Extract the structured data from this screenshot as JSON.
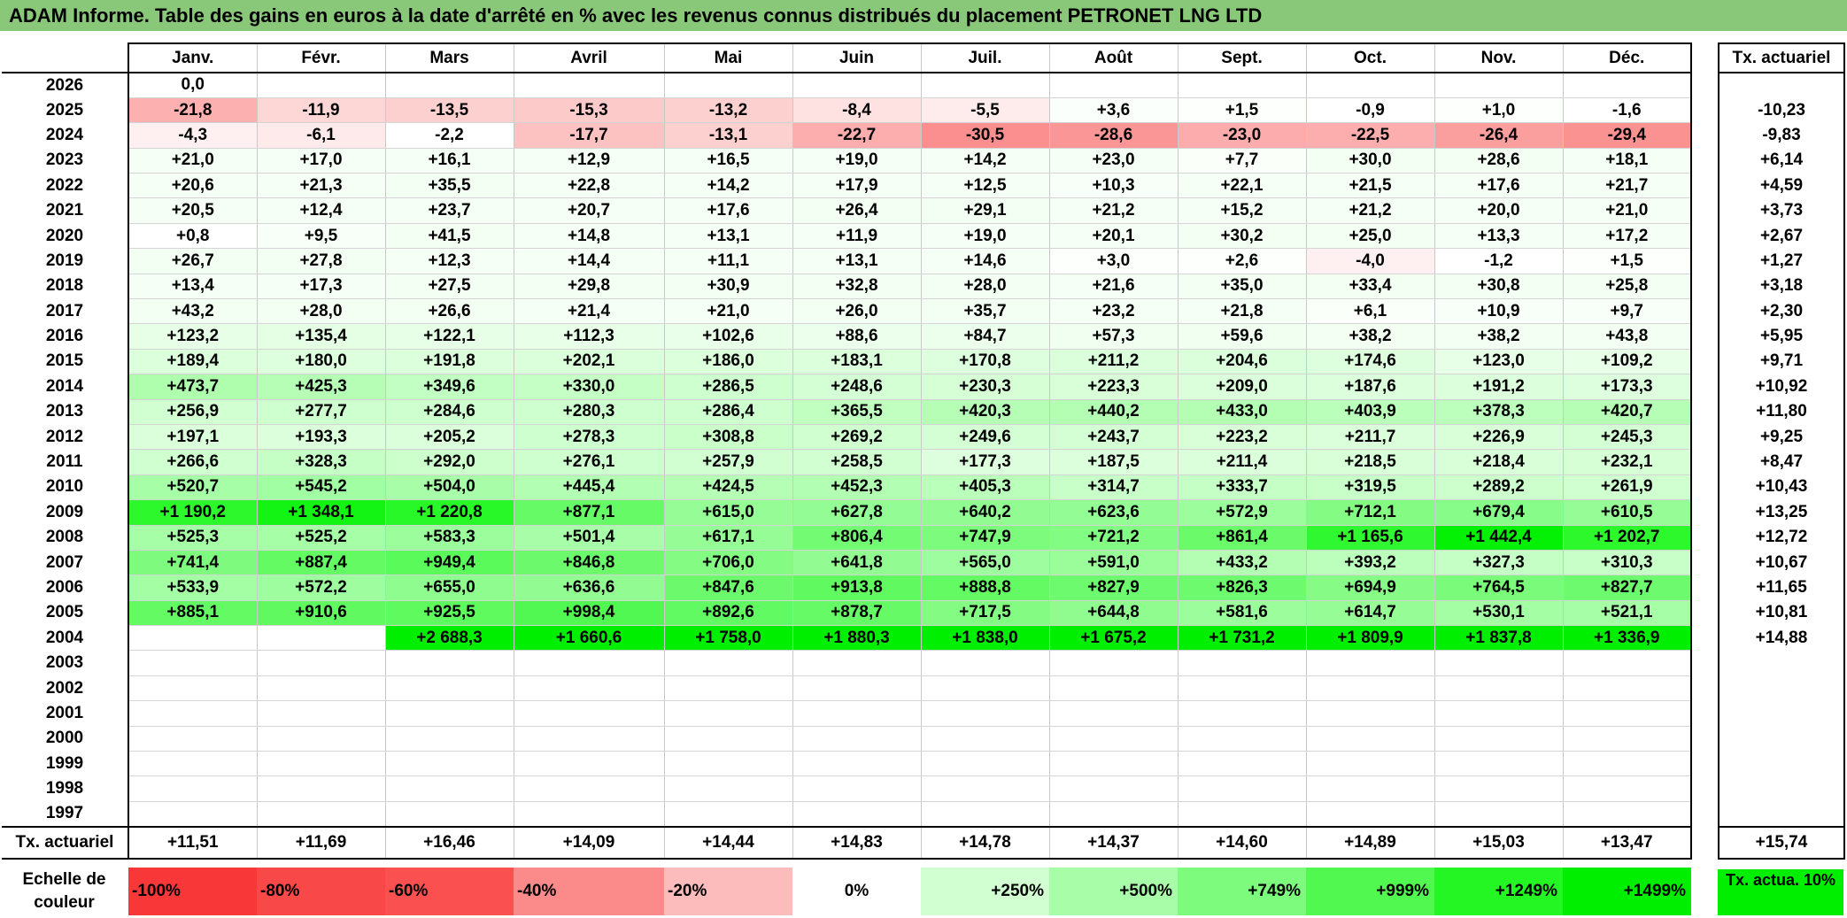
{
  "title": "ADAM Informe. Table des gains en euros à la date d'arrêté en % avec les revenus connus distribués du placement PETRONET LNG LTD",
  "months": [
    "Janv.",
    "Févr.",
    "Mars",
    "Avril",
    "Mai",
    "Juin",
    "Juil.",
    "Août",
    "Sept.",
    "Oct.",
    "Nov.",
    "Déc."
  ],
  "side_header": "Tx. actuariel",
  "rows": [
    {
      "year": "2026",
      "values": [
        "0,0",
        "",
        "",
        "",
        "",
        "",
        "",
        "",
        "",
        "",
        "",
        ""
      ],
      "colors": [
        "#ffffff",
        "#ffffff",
        "#ffffff",
        "#ffffff",
        "#ffffff",
        "#ffffff",
        "#ffffff",
        "#ffffff",
        "#ffffff",
        "#ffffff",
        "#ffffff",
        "#ffffff"
      ],
      "rate": ""
    },
    {
      "year": "2025",
      "values": [
        "-21,8",
        "-11,9",
        "-13,5",
        "-15,3",
        "-13,2",
        "-8,4",
        "-5,5",
        "+3,6",
        "+1,5",
        "-0,9",
        "+1,0",
        "-1,6"
      ],
      "colors": [
        "#fcb0b0",
        "#fdd6d6",
        "#fdd0d0",
        "#fdcaca",
        "#fdd0d0",
        "#fee2e2",
        "#feecec",
        "#fbfffb",
        "#fdfffd",
        "#ffffff",
        "#fdfffd",
        "#ffffff"
      ],
      "rate": "-10,23"
    },
    {
      "year": "2024",
      "values": [
        "-4,3",
        "-6,1",
        "-2,2",
        "-17,7",
        "-13,1",
        "-22,7",
        "-30,5",
        "-28,6",
        "-23,0",
        "-22,5",
        "-26,4",
        "-29,4"
      ],
      "colors": [
        "#fef0f0",
        "#feeaea",
        "#ffffff",
        "#fcc2c2",
        "#fdd0d0",
        "#fcaeae",
        "#fb8e8e",
        "#fb9696",
        "#fcacac",
        "#fcaeae",
        "#fb9e9e",
        "#fb9292"
      ],
      "rate": "-9,83"
    },
    {
      "year": "2023",
      "values": [
        "+21,0",
        "+17,0",
        "+16,1",
        "+12,9",
        "+16,5",
        "+19,0",
        "+14,2",
        "+23,0",
        "+7,7",
        "+30,0",
        "+28,6",
        "+18,1"
      ],
      "colors": [
        "#f6fff6",
        "#f6fff6",
        "#f6fff6",
        "#f6fff6",
        "#f6fff6",
        "#f6fff6",
        "#f6fff6",
        "#f6fff6",
        "#fafffa",
        "#f4fff4",
        "#f4fff4",
        "#f6fff6"
      ],
      "rate": "+6,14"
    },
    {
      "year": "2022",
      "values": [
        "+20,6",
        "+21,3",
        "+35,5",
        "+22,8",
        "+14,2",
        "+17,9",
        "+12,5",
        "+10,3",
        "+22,1",
        "+21,5",
        "+17,6",
        "+21,7"
      ],
      "colors": [
        "#f6fff6",
        "#f6fff6",
        "#f4fff4",
        "#f6fff6",
        "#f6fff6",
        "#f6fff6",
        "#f6fff6",
        "#f8fff8",
        "#f6fff6",
        "#f6fff6",
        "#f6fff6",
        "#f6fff6"
      ],
      "rate": "+4,59"
    },
    {
      "year": "2021",
      "values": [
        "+20,5",
        "+12,4",
        "+23,7",
        "+20,7",
        "+17,6",
        "+26,4",
        "+29,1",
        "+21,2",
        "+15,2",
        "+21,2",
        "+20,0",
        "+21,0"
      ],
      "colors": [
        "#f6fff6",
        "#f6fff6",
        "#f6fff6",
        "#f6fff6",
        "#f6fff6",
        "#f4fff4",
        "#f4fff4",
        "#f6fff6",
        "#f6fff6",
        "#f6fff6",
        "#f6fff6",
        "#f6fff6"
      ],
      "rate": "+3,73"
    },
    {
      "year": "2020",
      "values": [
        "+0,8",
        "+9,5",
        "+41,5",
        "+14,8",
        "+13,1",
        "+11,9",
        "+19,0",
        "+20,1",
        "+30,2",
        "+25,0",
        "+13,3",
        "+17,2"
      ],
      "colors": [
        "#ffffff",
        "#f8fff8",
        "#f2fff2",
        "#f6fff6",
        "#f6fff6",
        "#f6fff6",
        "#f6fff6",
        "#f6fff6",
        "#f4fff4",
        "#f4fff4",
        "#f6fff6",
        "#f6fff6"
      ],
      "rate": "+2,67"
    },
    {
      "year": "2019",
      "values": [
        "+26,7",
        "+27,8",
        "+12,3",
        "+14,4",
        "+11,1",
        "+13,1",
        "+14,6",
        "+3,0",
        "+2,6",
        "-4,0",
        "-1,2",
        "+1,5"
      ],
      "colors": [
        "#f4fff4",
        "#f4fff4",
        "#f6fff6",
        "#f6fff6",
        "#f6fff6",
        "#f6fff6",
        "#f6fff6",
        "#fcfffc",
        "#fdfffd",
        "#fef0f0",
        "#ffffff",
        "#fdfffd"
      ],
      "rate": "+1,27"
    },
    {
      "year": "2018",
      "values": [
        "+13,4",
        "+17,3",
        "+27,5",
        "+29,8",
        "+30,9",
        "+32,8",
        "+28,0",
        "+21,6",
        "+35,0",
        "+33,4",
        "+30,8",
        "+25,8"
      ],
      "colors": [
        "#f6fff6",
        "#f6fff6",
        "#f4fff4",
        "#f4fff4",
        "#f4fff4",
        "#f4fff4",
        "#f4fff4",
        "#f6fff6",
        "#f4fff4",
        "#f4fff4",
        "#f4fff4",
        "#f4fff4"
      ],
      "rate": "+3,18"
    },
    {
      "year": "2017",
      "values": [
        "+43,2",
        "+28,0",
        "+26,6",
        "+21,4",
        "+21,0",
        "+26,0",
        "+35,7",
        "+23,2",
        "+21,8",
        "+6,1",
        "+10,9",
        "+9,7"
      ],
      "colors": [
        "#f2fff2",
        "#f4fff4",
        "#f4fff4",
        "#f6fff6",
        "#f6fff6",
        "#f4fff4",
        "#f4fff4",
        "#f6fff6",
        "#f6fff6",
        "#fafffa",
        "#f8fff8",
        "#f8fff8"
      ],
      "rate": "+2,30"
    },
    {
      "year": "2016",
      "values": [
        "+123,2",
        "+135,4",
        "+122,1",
        "+112,3",
        "+102,6",
        "+88,6",
        "+84,7",
        "+57,3",
        "+59,6",
        "+38,2",
        "+38,2",
        "+43,8"
      ],
      "colors": [
        "#e6ffe6",
        "#e4ffe4",
        "#e6ffe6",
        "#e8ffe8",
        "#eaffea",
        "#ecffec",
        "#ecffec",
        "#f0fff0",
        "#f0fff0",
        "#f2fff2",
        "#f2fff2",
        "#f2fff2"
      ],
      "rate": "+5,95"
    },
    {
      "year": "2015",
      "values": [
        "+189,4",
        "+180,0",
        "+191,8",
        "+202,1",
        "+186,0",
        "+183,1",
        "+170,8",
        "+211,2",
        "+204,6",
        "+174,6",
        "+123,0",
        "+109,2"
      ],
      "colors": [
        "#dcffdc",
        "#deffde",
        "#dcffdc",
        "#daffda",
        "#dcffdc",
        "#dcffdc",
        "#deffde",
        "#daffda",
        "#daffda",
        "#deffde",
        "#e6ffe6",
        "#e8ffe8"
      ],
      "rate": "+9,71"
    },
    {
      "year": "2014",
      "values": [
        "+473,7",
        "+425,3",
        "+349,6",
        "+330,0",
        "+286,5",
        "+248,6",
        "+230,3",
        "+223,3",
        "+209,0",
        "+187,6",
        "+191,2",
        "+173,3"
      ],
      "colors": [
        "#aefeae",
        "#b6feb6",
        "#c2ffc2",
        "#c6ffc6",
        "#ceffce",
        "#d4ffd4",
        "#d6ffd6",
        "#d8ffd8",
        "#daffda",
        "#dcffdc",
        "#dcffdc",
        "#deffde"
      ],
      "rate": "+10,92"
    },
    {
      "year": "2013",
      "values": [
        "+256,9",
        "+277,7",
        "+284,6",
        "+280,3",
        "+286,4",
        "+365,5",
        "+420,3",
        "+440,2",
        "+433,0",
        "+403,9",
        "+378,3",
        "+420,7"
      ],
      "colors": [
        "#d2ffd2",
        "#ceffce",
        "#ceffce",
        "#ceffce",
        "#ceffce",
        "#c0ffc0",
        "#b6feb6",
        "#b4feb4",
        "#b4feb4",
        "#baffba",
        "#bcffbc",
        "#b6feb6"
      ],
      "rate": "+11,80"
    },
    {
      "year": "2012",
      "values": [
        "+197,1",
        "+193,3",
        "+205,2",
        "+278,3",
        "+308,8",
        "+269,2",
        "+249,6",
        "+243,7",
        "+223,2",
        "+211,7",
        "+226,9",
        "+245,3"
      ],
      "colors": [
        "#daffda",
        "#dcffdc",
        "#daffda",
        "#ceffce",
        "#caffca",
        "#d0ffd0",
        "#d4ffd4",
        "#d4ffd4",
        "#d8ffd8",
        "#daffda",
        "#d8ffd8",
        "#d4ffd4"
      ],
      "rate": "+9,25"
    },
    {
      "year": "2011",
      "values": [
        "+266,6",
        "+328,3",
        "+292,0",
        "+276,1",
        "+257,9",
        "+258,5",
        "+177,3",
        "+187,5",
        "+211,4",
        "+218,5",
        "+218,4",
        "+232,1"
      ],
      "colors": [
        "#d0ffd0",
        "#c6ffc6",
        "#ccffcc",
        "#ceffce",
        "#d2ffd2",
        "#d2ffd2",
        "#deffde",
        "#dcffdc",
        "#daffda",
        "#d8ffd8",
        "#d8ffd8",
        "#d6ffd6"
      ],
      "rate": "+8,47"
    },
    {
      "year": "2010",
      "values": [
        "+520,7",
        "+545,2",
        "+504,0",
        "+445,4",
        "+424,5",
        "+452,3",
        "+405,3",
        "+314,7",
        "+333,7",
        "+319,5",
        "+289,2",
        "+261,9"
      ],
      "colors": [
        "#a6fea6",
        "#a2fea2",
        "#a8fea8",
        "#b2feb2",
        "#b6feb6",
        "#b2feb2",
        "#baffba",
        "#c8ffc8",
        "#c6ffc6",
        "#c8ffc8",
        "#ccffcc",
        "#d0ffd0"
      ],
      "rate": "+10,43"
    },
    {
      "year": "2009",
      "values": [
        "+1 190,2",
        "+1 348,1",
        "+1 220,8",
        "+877,1",
        "+615,0",
        "+627,8",
        "+640,2",
        "+623,6",
        "+572,9",
        "+712,1",
        "+679,4",
        "+610,5"
      ],
      "colors": [
        "#2cf82c",
        "#14f414",
        "#28f828",
        "#66fa66",
        "#96fc96",
        "#94fc94",
        "#92fc92",
        "#94fc94",
        "#9cfd9c",
        "#84fc84",
        "#88fc88",
        "#96fc96"
      ],
      "rate": "+13,25"
    },
    {
      "year": "2008",
      "values": [
        "+525,3",
        "+525,2",
        "+583,3",
        "+501,4",
        "+617,1",
        "+806,4",
        "+747,9",
        "+721,2",
        "+861,4",
        "+1 165,6",
        "+1 442,4",
        "+1 202,7"
      ],
      "colors": [
        "#a6fea6",
        "#a6fea6",
        "#9cfd9c",
        "#a8fea8",
        "#96fc96",
        "#74fb74",
        "#7cfb7c",
        "#82fc82",
        "#6afa6a",
        "#30f830",
        "#04f004",
        "#2cf82c"
      ],
      "rate": "+12,72"
    },
    {
      "year": "2007",
      "values": [
        "+741,4",
        "+887,4",
        "+949,4",
        "+846,8",
        "+706,0",
        "+641,8",
        "+565,0",
        "+591,0",
        "+433,2",
        "+393,2",
        "+327,3",
        "+310,3"
      ],
      "colors": [
        "#7efb7e",
        "#64fa64",
        "#5afa5a",
        "#6cfa6c",
        "#84fc84",
        "#92fc92",
        "#9efd9e",
        "#9afd9a",
        "#b4feb4",
        "#bcffbc",
        "#c6ffc6",
        "#c8ffc8"
      ],
      "rate": "+10,67"
    },
    {
      "year": "2006",
      "values": [
        "+533,9",
        "+572,2",
        "+655,0",
        "+636,6",
        "+847,6",
        "+913,8",
        "+888,8",
        "+827,9",
        "+826,3",
        "+694,9",
        "+764,5",
        "+827,7"
      ],
      "colors": [
        "#a4fea4",
        "#9efd9e",
        "#8efc8e",
        "#92fc92",
        "#6cfa6c",
        "#60fa60",
        "#64fa64",
        "#6efa6e",
        "#6efa6e",
        "#86fc86",
        "#7afb7a",
        "#6efa6e"
      ],
      "rate": "+11,65"
    },
    {
      "year": "2005",
      "values": [
        "+885,1",
        "+910,6",
        "+925,5",
        "+998,4",
        "+892,6",
        "+878,7",
        "+717,5",
        "+644,8",
        "+581,6",
        "+614,7",
        "+530,1",
        "+521,1"
      ],
      "colors": [
        "#64fa64",
        "#60fa60",
        "#5efa5e",
        "#52f852",
        "#62fa62",
        "#66fa66",
        "#84fc84",
        "#90fc90",
        "#9cfd9c",
        "#96fc96",
        "#a4fea4",
        "#a6fea6"
      ],
      "rate": "+10,81"
    },
    {
      "year": "2004",
      "values": [
        "",
        "",
        "+2 688,3",
        "+1 660,6",
        "+1 758,0",
        "+1 880,3",
        "+1 838,0",
        "+1 675,2",
        "+1 731,2",
        "+1 809,9",
        "+1 837,8",
        "+1 336,9"
      ],
      "colors": [
        "#ffffff",
        "#ffffff",
        "#00ee00",
        "#00ee00",
        "#00ee00",
        "#00ee00",
        "#00ee00",
        "#00ee00",
        "#00ee00",
        "#00ee00",
        "#00ee00",
        "#00ee00"
      ],
      "rate": "+14,88"
    },
    {
      "year": "2003",
      "values": [
        "",
        "",
        "",
        "",
        "",
        "",
        "",
        "",
        "",
        "",
        "",
        ""
      ],
      "colors": [
        "#ffffff",
        "#ffffff",
        "#ffffff",
        "#ffffff",
        "#ffffff",
        "#ffffff",
        "#ffffff",
        "#ffffff",
        "#ffffff",
        "#ffffff",
        "#ffffff",
        "#ffffff"
      ],
      "rate": ""
    },
    {
      "year": "2002",
      "values": [
        "",
        "",
        "",
        "",
        "",
        "",
        "",
        "",
        "",
        "",
        "",
        ""
      ],
      "colors": [
        "#ffffff",
        "#ffffff",
        "#ffffff",
        "#ffffff",
        "#ffffff",
        "#ffffff",
        "#ffffff",
        "#ffffff",
        "#ffffff",
        "#ffffff",
        "#ffffff",
        "#ffffff"
      ],
      "rate": ""
    },
    {
      "year": "2001",
      "values": [
        "",
        "",
        "",
        "",
        "",
        "",
        "",
        "",
        "",
        "",
        "",
        ""
      ],
      "colors": [
        "#ffffff",
        "#ffffff",
        "#ffffff",
        "#ffffff",
        "#ffffff",
        "#ffffff",
        "#ffffff",
        "#ffffff",
        "#ffffff",
        "#ffffff",
        "#ffffff",
        "#ffffff"
      ],
      "rate": ""
    },
    {
      "year": "2000",
      "values": [
        "",
        "",
        "",
        "",
        "",
        "",
        "",
        "",
        "",
        "",
        "",
        ""
      ],
      "colors": [
        "#ffffff",
        "#ffffff",
        "#ffffff",
        "#ffffff",
        "#ffffff",
        "#ffffff",
        "#ffffff",
        "#ffffff",
        "#ffffff",
        "#ffffff",
        "#ffffff",
        "#ffffff"
      ],
      "rate": ""
    },
    {
      "year": "1999",
      "values": [
        "",
        "",
        "",
        "",
        "",
        "",
        "",
        "",
        "",
        "",
        "",
        ""
      ],
      "colors": [
        "#ffffff",
        "#ffffff",
        "#ffffff",
        "#ffffff",
        "#ffffff",
        "#ffffff",
        "#ffffff",
        "#ffffff",
        "#ffffff",
        "#ffffff",
        "#ffffff",
        "#ffffff"
      ],
      "rate": ""
    },
    {
      "year": "1998",
      "values": [
        "",
        "",
        "",
        "",
        "",
        "",
        "",
        "",
        "",
        "",
        "",
        ""
      ],
      "colors": [
        "#ffffff",
        "#ffffff",
        "#ffffff",
        "#ffffff",
        "#ffffff",
        "#ffffff",
        "#ffffff",
        "#ffffff",
        "#ffffff",
        "#ffffff",
        "#ffffff",
        "#ffffff"
      ],
      "rate": ""
    },
    {
      "year": "1997",
      "values": [
        "",
        "",
        "",
        "",
        "",
        "",
        "",
        "",
        "",
        "",
        "",
        ""
      ],
      "colors": [
        "#ffffff",
        "#ffffff",
        "#ffffff",
        "#ffffff",
        "#ffffff",
        "#ffffff",
        "#ffffff",
        "#ffffff",
        "#ffffff",
        "#ffffff",
        "#ffffff",
        "#ffffff"
      ],
      "rate": ""
    }
  ],
  "avg_row": {
    "label": "Tx. actuariel",
    "values": [
      "+11,51",
      "+11,69",
      "+16,46",
      "+14,09",
      "+14,44",
      "+14,83",
      "+14,78",
      "+14,37",
      "+14,60",
      "+14,89",
      "+15,03",
      "+13,47"
    ],
    "total": "+15,74"
  },
  "scale": {
    "label": "Echelle de couleur",
    "steps": [
      {
        "text": "-100%",
        "color": "#f83838",
        "align": "left"
      },
      {
        "text": "-80%",
        "color": "#f94848",
        "align": "left"
      },
      {
        "text": "-60%",
        "color": "#fa5050",
        "align": "left"
      },
      {
        "text": "-40%",
        "color": "#fb8a8a",
        "align": "left"
      },
      {
        "text": "-20%",
        "color": "#fcbcbc",
        "align": "left"
      },
      {
        "text": "0%",
        "color": "#ffffff",
        "align": "center"
      },
      {
        "text": "+250%",
        "color": "#d2ffd2",
        "align": "right"
      },
      {
        "text": "+500%",
        "color": "#a8fea8",
        "align": "right"
      },
      {
        "text": "+749%",
        "color": "#7cfb7c",
        "align": "right"
      },
      {
        "text": "+999%",
        "color": "#50f850",
        "align": "right"
      },
      {
        "text": "+1249%",
        "color": "#24f624",
        "align": "right"
      },
      {
        "text": "+1499%",
        "color": "#00ee00",
        "align": "right"
      }
    ],
    "tx_label": "Tx. actua. 10%"
  }
}
